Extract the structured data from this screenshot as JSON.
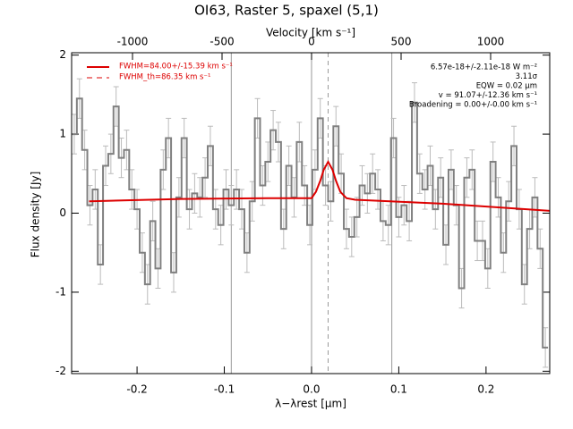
{
  "chart_data": {
    "type": "step",
    "title": "OI63, Raster 5, spaxel (5,1)",
    "xlabel": "λ−λrest [μm]",
    "ylabel": "Flux density [Jy]",
    "x2label": "Velocity [km s⁻¹]",
    "xlim": [
      -0.275,
      0.273
    ],
    "xticks": [
      -0.2,
      -0.1,
      {
        "value": 0,
        "label": "0.0"
      },
      0.1,
      0.2
    ],
    "x2lim": [
      -1340,
      1330
    ],
    "x2ticks": [
      -1000,
      -500,
      0,
      500,
      1000
    ],
    "ylim": [
      -2.03,
      2.03
    ],
    "yticks": [
      -2,
      -1,
      0,
      1,
      2
    ],
    "vlines": [
      -0.092,
      0,
      0.092
    ],
    "dashed_vline": 0.019,
    "series": [
      {
        "color": "#808080",
        "error": 0.25,
        "x": [
          -0.272,
          -0.266,
          -0.26,
          -0.254,
          -0.248,
          -0.242,
          -0.236,
          -0.23,
          -0.224,
          -0.218,
          -0.212,
          -0.206,
          -0.2,
          -0.194,
          -0.188,
          -0.182,
          -0.176,
          -0.17,
          -0.164,
          -0.158,
          -0.152,
          -0.146,
          -0.14,
          -0.134,
          -0.128,
          -0.122,
          -0.116,
          -0.11,
          -0.104,
          -0.098,
          -0.092,
          -0.086,
          -0.08,
          -0.074,
          -0.068,
          -0.062,
          -0.056,
          -0.05,
          -0.044,
          -0.038,
          -0.032,
          -0.026,
          -0.02,
          -0.014,
          -0.008,
          -0.002,
          0.004,
          0.01,
          0.016,
          0.022,
          0.028,
          0.034,
          0.04,
          0.046,
          0.052,
          0.058,
          0.064,
          0.07,
          0.076,
          0.082,
          0.088,
          0.094,
          0.1,
          0.106,
          0.112,
          0.118,
          0.124,
          0.13,
          0.136,
          0.142,
          0.148,
          0.154,
          0.16,
          0.166,
          0.172,
          0.178,
          0.184,
          0.19,
          0.196,
          0.202,
          0.208,
          0.214,
          0.22,
          0.226,
          0.232,
          0.238,
          0.244,
          0.25,
          0.256,
          0.262,
          0.268
        ],
        "values": [
          1.0,
          1.45,
          0.8,
          0.1,
          0.3,
          -0.65,
          0.6,
          0.75,
          1.35,
          0.7,
          0.8,
          0.3,
          0.05,
          -0.5,
          -0.9,
          -0.1,
          -0.7,
          0.55,
          0.95,
          -0.75,
          0.2,
          0.95,
          0.05,
          0.25,
          0.2,
          0.45,
          0.85,
          0.05,
          -0.15,
          0.3,
          0.1,
          0.3,
          0.05,
          -0.5,
          0.15,
          1.2,
          0.35,
          0.65,
          1.05,
          0.9,
          -0.2,
          0.6,
          0.2,
          0.9,
          0.35,
          -0.15,
          0.55,
          1.2,
          0.35,
          0.15,
          1.1,
          0.5,
          -0.2,
          -0.3,
          -0.05,
          0.35,
          0.25,
          0.5,
          0.3,
          -0.1,
          -0.15,
          0.95,
          -0.05,
          0.1,
          -0.1,
          1.4,
          0.5,
          0.3,
          0.6,
          0.05,
          0.45,
          -0.4,
          0.55,
          0.1,
          -0.95,
          0.45,
          0.55,
          -0.35,
          -0.35,
          -0.7,
          0.65,
          0.2,
          -0.5,
          0.15,
          0.85,
          0.05,
          -0.9,
          -0.2,
          0.2,
          -0.45,
          -1.7
        ]
      },
      {
        "name": "FWHM=84.00+/-15.39 km s⁻¹",
        "color": "#dd0000",
        "x": [
          -0.255,
          -0.15,
          -0.05,
          0.0,
          0.005,
          0.01,
          0.014,
          0.019,
          0.024,
          0.028,
          0.033,
          0.04,
          0.05,
          0.15,
          0.273
        ],
        "values": [
          0.15,
          0.18,
          0.19,
          0.19,
          0.27,
          0.41,
          0.55,
          0.65,
          0.55,
          0.41,
          0.27,
          0.19,
          0.17,
          0.12,
          0.03
        ]
      }
    ],
    "legend_dashed": "FWHM_th=86.35 km s⁻¹",
    "annotations": [
      "6.57e-18+/-2.11e-18 W m⁻²",
      "3.11σ",
      "EQW = 0.02 μm",
      "v = 91.07+/-12.36 km s⁻¹",
      "Broadening = 0.00+/-0.00 km s⁻¹"
    ]
  }
}
